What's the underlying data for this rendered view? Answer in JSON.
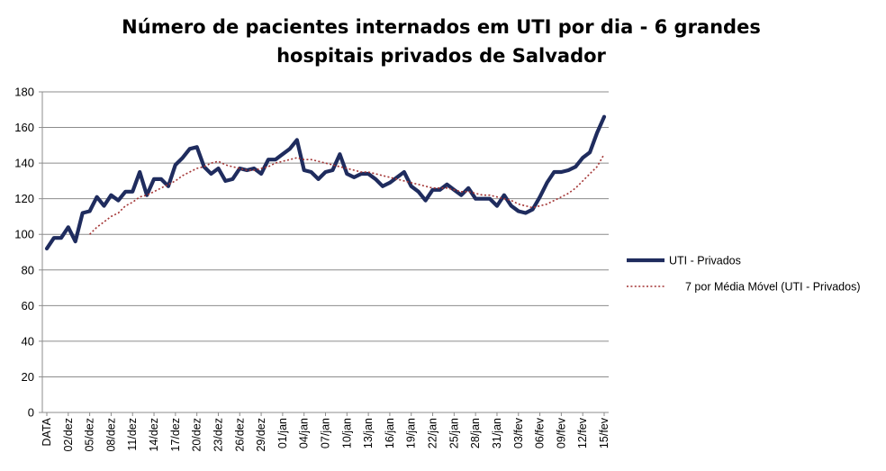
{
  "chart_data": {
    "type": "line",
    "title": [
      "Número de pacientes internados em UTI por dia - 6 grandes",
      "hospitais privados de Salvador"
    ],
    "xlabel": "",
    "ylabel": "",
    "ylim": [
      0,
      180
    ],
    "yticks": [
      0,
      20,
      40,
      60,
      80,
      100,
      120,
      140,
      160,
      180
    ],
    "grid": true,
    "legend_position": "right",
    "x_labels": [
      "DATA",
      "02/dez",
      "05/dez",
      "08/dez",
      "11/dez",
      "14/dez",
      "17/dez",
      "20/dez",
      "23/dez",
      "26/dez",
      "29/dez",
      "01/jan",
      "04/jan",
      "07/jan",
      "10/jan",
      "13/jan",
      "16/jan",
      "19/jan",
      "22/jan",
      "25/jan",
      "28/jan",
      "31/jan",
      "03/fev",
      "06/fev",
      "09/fev",
      "12/fev",
      "15/fev"
    ],
    "series": [
      {
        "name": "UTI - Privados",
        "color": "#1f2c5e",
        "style": "solid",
        "values": [
          92,
          98,
          98,
          104,
          96,
          112,
          113,
          121,
          116,
          122,
          119,
          124,
          124,
          135,
          122,
          131,
          131,
          127,
          139,
          143,
          148,
          149,
          138,
          134,
          137,
          130,
          131,
          137,
          136,
          137,
          134,
          142,
          142,
          145,
          148,
          153,
          136,
          135,
          131,
          135,
          136,
          145,
          134,
          132,
          134,
          134,
          131,
          127,
          129,
          132,
          135,
          127,
          124,
          119,
          125,
          125,
          128,
          125,
          122,
          126,
          120,
          120,
          120,
          116,
          122,
          116,
          113,
          112,
          114,
          121,
          129,
          135,
          135,
          136,
          138,
          143,
          146,
          157,
          166
        ]
      },
      {
        "name": "7 por Média Móvel (UTI - Privados)",
        "color": "#a33434",
        "style": "dotted",
        "values": [
          null,
          null,
          null,
          null,
          null,
          null,
          100,
          104,
          107,
          110,
          112,
          116,
          118,
          121,
          122,
          124,
          126,
          128,
          130,
          133,
          135,
          137,
          138,
          140,
          141,
          139,
          138,
          137,
          136,
          136,
          137,
          138,
          140,
          141,
          142,
          143,
          142,
          142,
          141,
          140,
          139,
          138,
          137,
          136,
          135,
          135,
          134,
          133,
          132,
          131,
          130,
          129,
          128,
          127,
          126,
          126,
          126,
          125,
          124,
          124,
          123,
          122,
          122,
          121,
          120,
          119,
          117,
          116,
          115,
          116,
          117,
          119,
          121,
          123,
          126,
          130,
          134,
          138,
          145
        ]
      }
    ]
  }
}
